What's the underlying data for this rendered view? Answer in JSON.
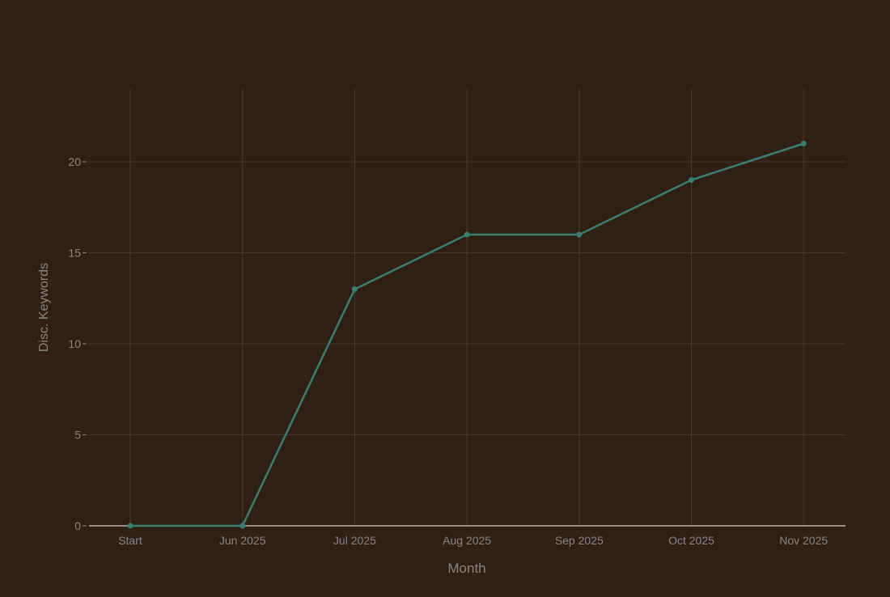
{
  "chart_data": {
    "type": "line",
    "title": "",
    "xlabel": "Month",
    "ylabel": "Disc. Keywords",
    "categories": [
      "Start",
      "Jun 2025",
      "Jul 2025",
      "Aug 2025",
      "Sep 2025",
      "Oct 2025",
      "Nov 2025"
    ],
    "values": [
      0,
      0,
      13,
      16,
      16,
      19,
      21
    ],
    "ylim": [
      0,
      24
    ],
    "yticks": [
      0,
      5,
      10,
      15,
      20
    ],
    "grid": true,
    "legend": "none",
    "colors": {
      "background": "#2f2016",
      "line": "#3b7d70",
      "grid": "#4a3a2d",
      "text": "#8a8580",
      "zeroline": "#ffffff"
    }
  }
}
